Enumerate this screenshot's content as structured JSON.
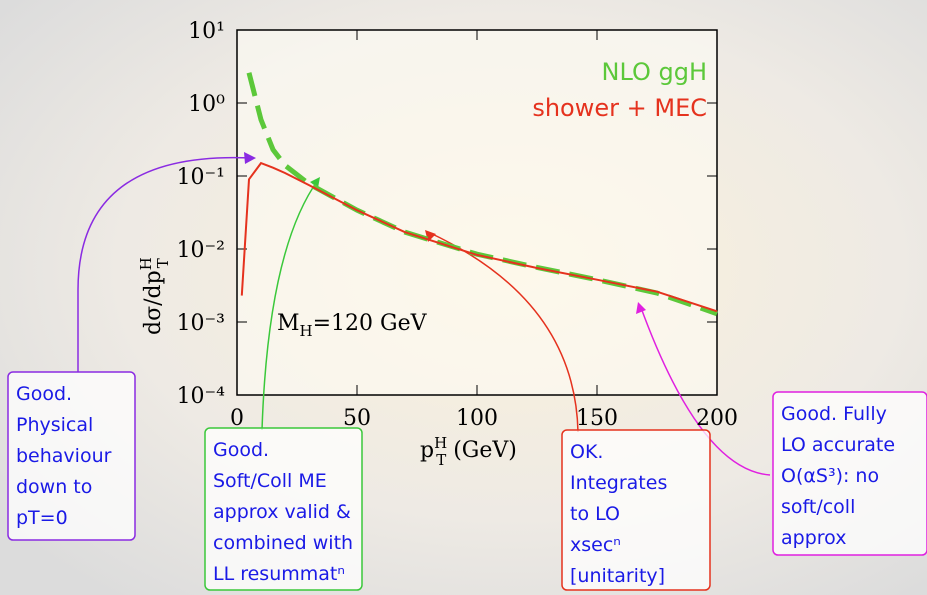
{
  "chart_data": {
    "type": "line",
    "x": [
      2,
      5,
      10,
      15,
      20,
      30,
      50,
      70,
      100,
      125,
      150,
      175,
      200
    ],
    "series": [
      {
        "name": "NLO ggH",
        "color": "#5cc83a",
        "dash": true,
        "values": [
          null,
          2.6,
          0.59,
          0.23,
          0.14,
          0.078,
          0.034,
          0.017,
          0.0085,
          0.0056,
          0.0038,
          0.0025,
          0.0013
        ]
      },
      {
        "name": "shower + MEC",
        "color": "#e5321e",
        "dash": false,
        "values": [
          0.0023,
          0.09,
          0.15,
          0.13,
          0.11,
          0.075,
          0.034,
          0.017,
          0.0083,
          0.0055,
          0.0038,
          0.0026,
          0.0014
        ]
      }
    ],
    "xlim": [
      0,
      200
    ],
    "xticks": [
      0,
      50,
      100,
      150,
      200
    ],
    "ylim": [
      0.0001,
      10
    ],
    "log_y": true,
    "yticks": [
      {
        "value": 10,
        "label": "10¹"
      },
      {
        "value": 1,
        "label": "10⁰"
      },
      {
        "value": 0.1,
        "label": "10⁻¹"
      },
      {
        "value": 0.01,
        "label": "10⁻²"
      },
      {
        "value": 0.001,
        "label": "10⁻³"
      },
      {
        "value": 0.0001,
        "label": "10⁻⁴"
      }
    ],
    "y_label": {
      "main": "dσ/dp",
      "sub": "T",
      "sup": "H"
    },
    "x_label": {
      "main": "p",
      "sub": "T",
      "sup": "H",
      "rest": " (GeV)"
    },
    "annotation": {
      "main": "M",
      "sub": "H",
      "rest": "=120 GeV"
    },
    "callouts": [
      {
        "color": "#8a2be2",
        "lines": [
          "Good.",
          "Physical",
          "behaviour",
          "down to",
          "pT=0"
        ]
      },
      {
        "color": "#3ac83a",
        "lines": [
          "Good.",
          "Soft/Coll ME",
          "approx valid &",
          "combined with",
          "LL resummatⁿ"
        ]
      },
      {
        "color": "#e5321e",
        "lines": [
          "OK.",
          "Integrates",
          "to LO",
          "xsecⁿ",
          "[unitarity]"
        ]
      },
      {
        "color": "#e020e0",
        "lines": [
          "Good. Fully",
          "LO accurate",
          "O(αS³): no",
          "soft/coll",
          "approx"
        ]
      }
    ]
  }
}
